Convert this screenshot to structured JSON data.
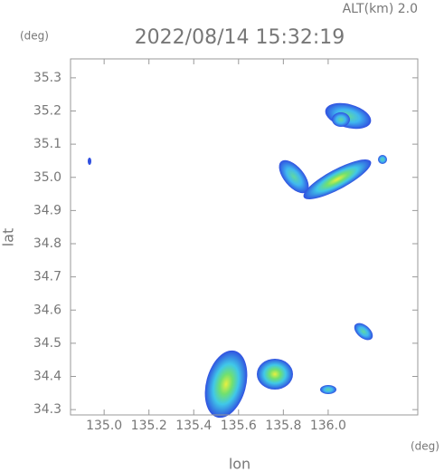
{
  "chart_data": {
    "type": "radar",
    "title": "2022/08/14 15:32:19",
    "subtitle": "ALT(km) 2.0",
    "x_label": "lon",
    "y_label": "lat",
    "x_unit": "(deg)",
    "y_unit": "(deg)",
    "xlim": [
      134.85,
      136.4
    ],
    "ylim": [
      34.284,
      35.357
    ],
    "xticks": [
      {
        "value": 135,
        "label": "135.0"
      },
      135.2,
      135.4,
      135.6,
      135.8,
      {
        "value": 136,
        "label": "136.0"
      }
    ],
    "yticks": [
      34.3,
      34.4,
      34.5,
      34.6,
      34.7,
      34.8,
      34.9,
      {
        "value": 35,
        "label": "35.0"
      },
      35.1,
      35.2,
      35.3
    ]
  }
}
